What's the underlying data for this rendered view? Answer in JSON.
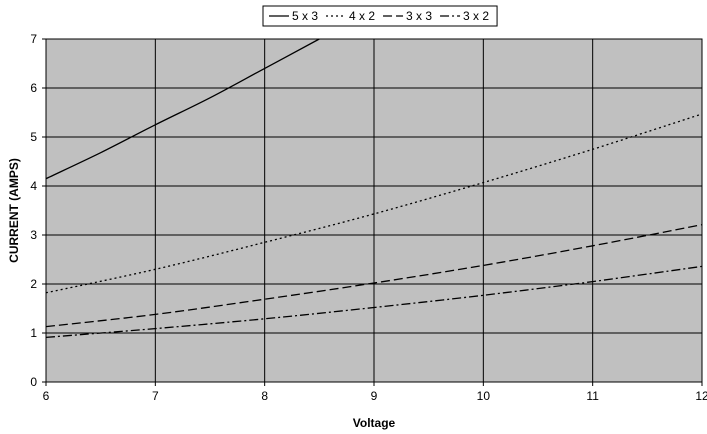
{
  "chart_data": {
    "type": "line",
    "title": "",
    "xlabel": "Voltage",
    "ylabel": "CURRENT (AMPS)",
    "xlim": [
      6,
      12
    ],
    "ylim": [
      0,
      7
    ],
    "x_ticks": [
      6,
      7,
      8,
      9,
      10,
      11,
      12
    ],
    "y_ticks": [
      0,
      1,
      2,
      3,
      4,
      5,
      6,
      7
    ],
    "grid": true,
    "legend_position": "top-center",
    "plot_background": "#c0c0c0",
    "series": [
      {
        "name": "5 x 3",
        "dash": "solid",
        "x": [
          6,
          6.5,
          7,
          7.5,
          8,
          8.5
        ],
        "y": [
          4.15,
          4.68,
          5.25,
          5.8,
          6.4,
          7.0
        ]
      },
      {
        "name": "4 x 2",
        "dash": "dotted",
        "x": [
          6,
          7,
          8,
          9,
          10,
          11,
          12
        ],
        "y": [
          1.82,
          2.3,
          2.85,
          3.43,
          4.07,
          4.75,
          5.47
        ]
      },
      {
        "name": "3 x 3",
        "dash": "long-dash",
        "x": [
          6,
          7,
          8,
          9,
          10,
          11,
          12
        ],
        "y": [
          1.13,
          1.38,
          1.69,
          2.02,
          2.38,
          2.78,
          3.21
        ]
      },
      {
        "name": "3 x 2",
        "dash": "dash-dot",
        "x": [
          6,
          7,
          8,
          9,
          10,
          11,
          12
        ],
        "y": [
          0.91,
          1.09,
          1.29,
          1.52,
          1.77,
          2.05,
          2.36
        ]
      }
    ]
  }
}
